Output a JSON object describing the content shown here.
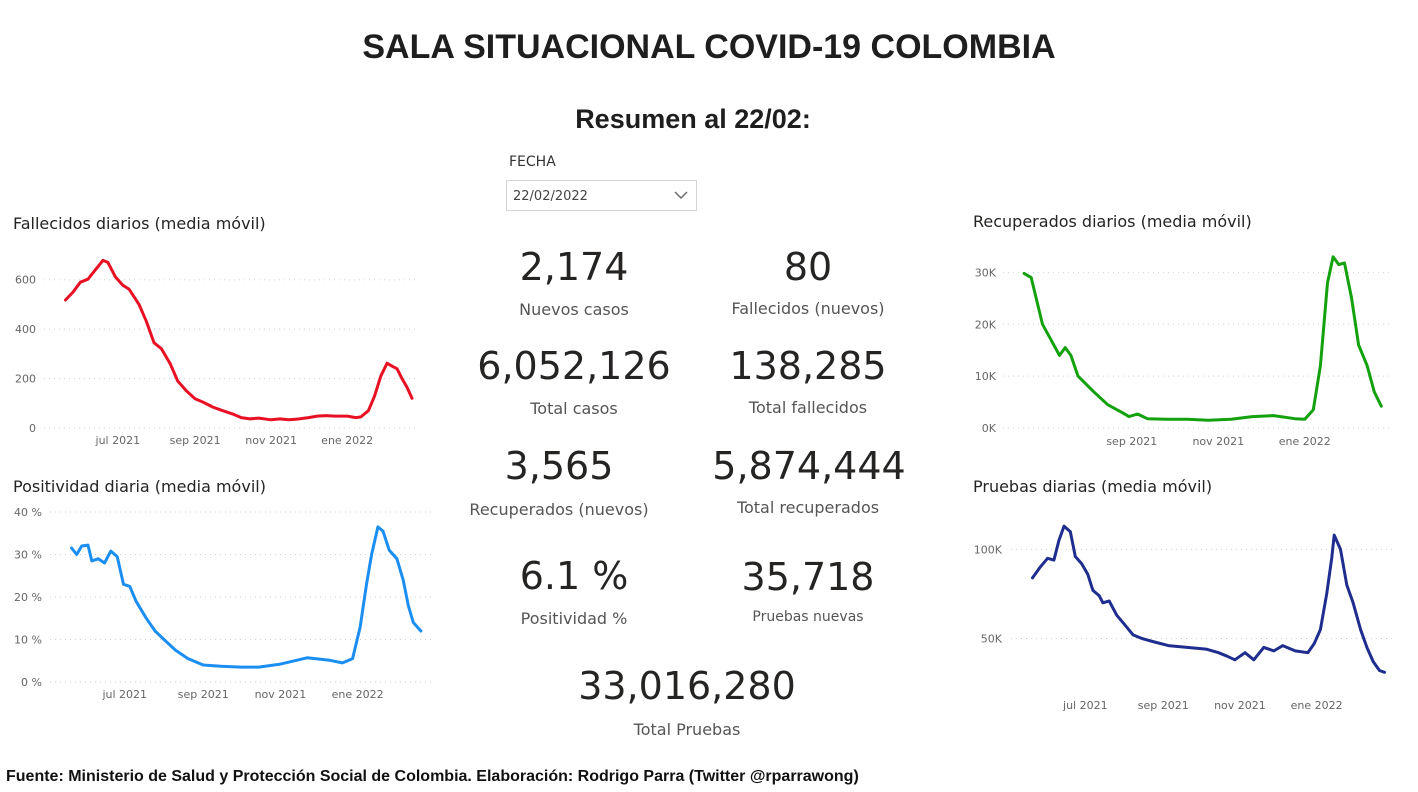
{
  "header": {
    "title": "SALA SITUACIONAL COVID-19 COLOMBIA",
    "subtitle": "Resumen al 22/02:"
  },
  "slicer": {
    "label": "FECHA",
    "value": "22/02/2022",
    "icon": "chevron-down-icon"
  },
  "kpis": {
    "nuevos_casos": {
      "value": "2,174",
      "label": "Nuevos casos"
    },
    "fallecidos_nuevos": {
      "value": "80",
      "label": "Fallecidos (nuevos)"
    },
    "total_casos": {
      "value": "6,052,126",
      "label": "Total casos"
    },
    "total_fallecidos": {
      "value": "138,285",
      "label": "Total fallecidos"
    },
    "recuperados_nuevos": {
      "value": "3,565",
      "label": "Recuperados (nuevos)"
    },
    "total_recuperados": {
      "value": "5,874,444",
      "label": "Total recuperados"
    },
    "positividad": {
      "value": "6.1 %",
      "label": "Positividad %"
    },
    "pruebas_nuevas": {
      "value": "35,718",
      "label": "Pruebas nuevas"
    },
    "total_pruebas": {
      "value": "33,016,280",
      "label": "Total Pruebas"
    }
  },
  "footer": "Fuente: Ministerio de Salud y Protección Social de Colombia. Elaboración: Rodrigo Parra (Twitter @rparrawong)",
  "chart_data": [
    {
      "id": "fallecidos",
      "type": "line",
      "title": "Fallecidos diarios (media móvil)",
      "color": "#e81123",
      "xlim": [
        "2021-05-14",
        "2022-02-22"
      ],
      "ylim": [
        0,
        700
      ],
      "yticks": [
        0,
        200,
        400,
        600
      ],
      "ytick_labels": [
        "0",
        "200",
        "400",
        "600"
      ],
      "xticks": [
        {
          "date": "2021-07-01",
          "label": "jul 2021"
        },
        {
          "date": "2021-09-01",
          "label": "sep 2021"
        },
        {
          "date": "2021-11-01",
          "label": "nov 2021"
        },
        {
          "date": "2022-01-01",
          "label": "ene 2022"
        }
      ],
      "points": [
        [
          "2021-05-20",
          518
        ],
        [
          "2021-05-26",
          550
        ],
        [
          "2021-06-01",
          590
        ],
        [
          "2021-06-07",
          602
        ],
        [
          "2021-06-13",
          640
        ],
        [
          "2021-06-19",
          678
        ],
        [
          "2021-06-23",
          670
        ],
        [
          "2021-06-29",
          612
        ],
        [
          "2021-07-05",
          578
        ],
        [
          "2021-07-10",
          562
        ],
        [
          "2021-07-18",
          500
        ],
        [
          "2021-07-24",
          430
        ],
        [
          "2021-07-30",
          345
        ],
        [
          "2021-08-05",
          320
        ],
        [
          "2021-08-12",
          260
        ],
        [
          "2021-08-18",
          190
        ],
        [
          "2021-08-25",
          150
        ],
        [
          "2021-09-01",
          118
        ],
        [
          "2021-09-08",
          103
        ],
        [
          "2021-09-15",
          85
        ],
        [
          "2021-09-22",
          72
        ],
        [
          "2021-10-01",
          57
        ],
        [
          "2021-10-08",
          42
        ],
        [
          "2021-10-15",
          37
        ],
        [
          "2021-10-22",
          40
        ],
        [
          "2021-11-01",
          33
        ],
        [
          "2021-11-08",
          37
        ],
        [
          "2021-11-15",
          33
        ],
        [
          "2021-11-22",
          36
        ],
        [
          "2021-12-01",
          42
        ],
        [
          "2021-12-08",
          48
        ],
        [
          "2021-12-15",
          50
        ],
        [
          "2021-12-22",
          48
        ],
        [
          "2022-01-01",
          48
        ],
        [
          "2022-01-08",
          42
        ],
        [
          "2022-01-12",
          45
        ],
        [
          "2022-01-18",
          70
        ],
        [
          "2022-01-23",
          130
        ],
        [
          "2022-01-28",
          210
        ],
        [
          "2022-02-02",
          262
        ],
        [
          "2022-02-06",
          250
        ],
        [
          "2022-02-10",
          240
        ],
        [
          "2022-02-14",
          200
        ],
        [
          "2022-02-18",
          165
        ],
        [
          "2022-02-22",
          120
        ]
      ]
    },
    {
      "id": "positividad",
      "type": "line",
      "title": "Positividad diaria (media móvil)",
      "color": "#1b8ef2",
      "xlim": [
        "2021-05-14",
        "2022-02-24"
      ],
      "ylim": [
        0,
        40
      ],
      "yticks": [
        0,
        10,
        20,
        30,
        40
      ],
      "ytick_labels": [
        "0 %",
        "10 %",
        "20 %",
        "30 %",
        "40 %"
      ],
      "xticks": [
        {
          "date": "2021-07-01",
          "label": "jul 2021"
        },
        {
          "date": "2021-09-01",
          "label": "sep 2021"
        },
        {
          "date": "2021-11-01",
          "label": "nov 2021"
        },
        {
          "date": "2022-01-01",
          "label": "ene 2022"
        }
      ],
      "points": [
        [
          "2021-05-20",
          31.5
        ],
        [
          "2021-05-24",
          30
        ],
        [
          "2021-05-28",
          32
        ],
        [
          "2021-06-02",
          32.2
        ],
        [
          "2021-06-05",
          28.5
        ],
        [
          "2021-06-10",
          29
        ],
        [
          "2021-06-15",
          28
        ],
        [
          "2021-06-20",
          30.8
        ],
        [
          "2021-06-25",
          29.5
        ],
        [
          "2021-06-30",
          23
        ],
        [
          "2021-07-05",
          22.5
        ],
        [
          "2021-07-10",
          19
        ],
        [
          "2021-07-18",
          15
        ],
        [
          "2021-07-25",
          12
        ],
        [
          "2021-08-01",
          10
        ],
        [
          "2021-08-10",
          7.5
        ],
        [
          "2021-08-20",
          5.5
        ],
        [
          "2021-09-01",
          4
        ],
        [
          "2021-09-15",
          3.7
        ],
        [
          "2021-10-01",
          3.5
        ],
        [
          "2021-10-15",
          3.5
        ],
        [
          "2021-11-01",
          4.2
        ],
        [
          "2021-11-15",
          5.2
        ],
        [
          "2021-11-22",
          5.7
        ],
        [
          "2021-12-01",
          5.4
        ],
        [
          "2021-12-10",
          5.1
        ],
        [
          "2021-12-20",
          4.5
        ],
        [
          "2021-12-28",
          5.5
        ],
        [
          "2022-01-03",
          13
        ],
        [
          "2022-01-08",
          23
        ],
        [
          "2022-01-12",
          30
        ],
        [
          "2022-01-17",
          36.5
        ],
        [
          "2022-01-21",
          35.5
        ],
        [
          "2022-01-26",
          31
        ],
        [
          "2022-02-01",
          29
        ],
        [
          "2022-02-06",
          24
        ],
        [
          "2022-02-10",
          18
        ],
        [
          "2022-02-14",
          14
        ],
        [
          "2022-02-20",
          12
        ]
      ]
    },
    {
      "id": "recuperados",
      "type": "line",
      "title": "Recuperados diarios (media móvil)",
      "color": "#13a10e",
      "xlim": [
        "2021-06-12",
        "2022-02-28"
      ],
      "ylim": [
        0,
        32000
      ],
      "yticks": [
        0,
        10000,
        20000,
        30000
      ],
      "ytick_labels": [
        "0K",
        "10K",
        "20K",
        "30K"
      ],
      "xticks": [
        {
          "date": "2021-09-01",
          "label": "sep 2021"
        },
        {
          "date": "2021-11-01",
          "label": "nov 2021"
        },
        {
          "date": "2022-01-01",
          "label": "ene 2022"
        }
      ],
      "points": [
        [
          "2021-06-17",
          29800
        ],
        [
          "2021-06-22",
          29000
        ],
        [
          "2021-06-30",
          20000
        ],
        [
          "2021-07-06",
          17000
        ],
        [
          "2021-07-12",
          14000
        ],
        [
          "2021-07-16",
          15500
        ],
        [
          "2021-07-20",
          14000
        ],
        [
          "2021-07-25",
          10000
        ],
        [
          "2021-08-05",
          7000
        ],
        [
          "2021-08-15",
          4500
        ],
        [
          "2021-08-25",
          3000
        ],
        [
          "2021-08-30",
          2200
        ],
        [
          "2021-09-05",
          2700
        ],
        [
          "2021-09-12",
          1800
        ],
        [
          "2021-09-25",
          1700
        ],
        [
          "2021-10-10",
          1700
        ],
        [
          "2021-10-25",
          1500
        ],
        [
          "2021-11-10",
          1700
        ],
        [
          "2021-11-25",
          2200
        ],
        [
          "2021-12-10",
          2400
        ],
        [
          "2021-12-25",
          1800
        ],
        [
          "2022-01-01",
          1700
        ],
        [
          "2022-01-07",
          3500
        ],
        [
          "2022-01-12",
          12000
        ],
        [
          "2022-01-17",
          28000
        ],
        [
          "2022-01-21",
          33000
        ],
        [
          "2022-01-25",
          31500
        ],
        [
          "2022-01-29",
          31800
        ],
        [
          "2022-02-03",
          25000
        ],
        [
          "2022-02-08",
          16000
        ],
        [
          "2022-02-14",
          12000
        ],
        [
          "2022-02-19",
          7000
        ],
        [
          "2022-02-24",
          4200
        ]
      ]
    },
    {
      "id": "pruebas",
      "type": "line",
      "title": "Pruebas diarias (media móvil)",
      "color": "#1f2d8e",
      "xlim": [
        "2021-05-14",
        "2022-02-26"
      ],
      "ylim": [
        25000,
        112000
      ],
      "yticks": [
        50000,
        100000
      ],
      "ytick_labels": [
        "50K",
        "100K"
      ],
      "xticks": [
        {
          "date": "2021-07-01",
          "label": "jul 2021"
        },
        {
          "date": "2021-09-01",
          "label": "sep 2021"
        },
        {
          "date": "2021-11-01",
          "label": "nov 2021"
        },
        {
          "date": "2022-01-01",
          "label": "ene 2022"
        }
      ],
      "points": [
        [
          "2021-05-20",
          84000
        ],
        [
          "2021-05-26",
          90000
        ],
        [
          "2021-06-01",
          95000
        ],
        [
          "2021-06-06",
          94000
        ],
        [
          "2021-06-10",
          105000
        ],
        [
          "2021-06-14",
          113000
        ],
        [
          "2021-06-19",
          110000
        ],
        [
          "2021-06-23",
          96000
        ],
        [
          "2021-06-28",
          92000
        ],
        [
          "2021-07-03",
          86000
        ],
        [
          "2021-07-07",
          77000
        ],
        [
          "2021-07-12",
          74000
        ],
        [
          "2021-07-15",
          70000
        ],
        [
          "2021-07-20",
          71000
        ],
        [
          "2021-07-26",
          63000
        ],
        [
          "2021-08-01",
          58000
        ],
        [
          "2021-08-08",
          52000
        ],
        [
          "2021-08-15",
          50000
        ],
        [
          "2021-08-25",
          48000
        ],
        [
          "2021-09-05",
          46000
        ],
        [
          "2021-09-20",
          45000
        ],
        [
          "2021-10-05",
          44000
        ],
        [
          "2021-10-15",
          42000
        ],
        [
          "2021-10-22",
          40000
        ],
        [
          "2021-10-28",
          38000
        ],
        [
          "2021-11-05",
          42000
        ],
        [
          "2021-11-12",
          38000
        ],
        [
          "2021-11-20",
          45000
        ],
        [
          "2021-11-28",
          43000
        ],
        [
          "2021-12-05",
          46000
        ],
        [
          "2021-12-15",
          43000
        ],
        [
          "2021-12-25",
          42000
        ],
        [
          "2021-12-30",
          47000
        ],
        [
          "2022-01-04",
          55000
        ],
        [
          "2022-01-09",
          75000
        ],
        [
          "2022-01-13",
          95000
        ],
        [
          "2022-01-15",
          108000
        ],
        [
          "2022-01-20",
          100000
        ],
        [
          "2022-01-25",
          80000
        ],
        [
          "2022-01-30",
          70000
        ],
        [
          "2022-02-05",
          55000
        ],
        [
          "2022-02-10",
          45000
        ],
        [
          "2022-02-15",
          37000
        ],
        [
          "2022-02-20",
          32000
        ],
        [
          "2022-02-24",
          31000
        ]
      ]
    }
  ]
}
